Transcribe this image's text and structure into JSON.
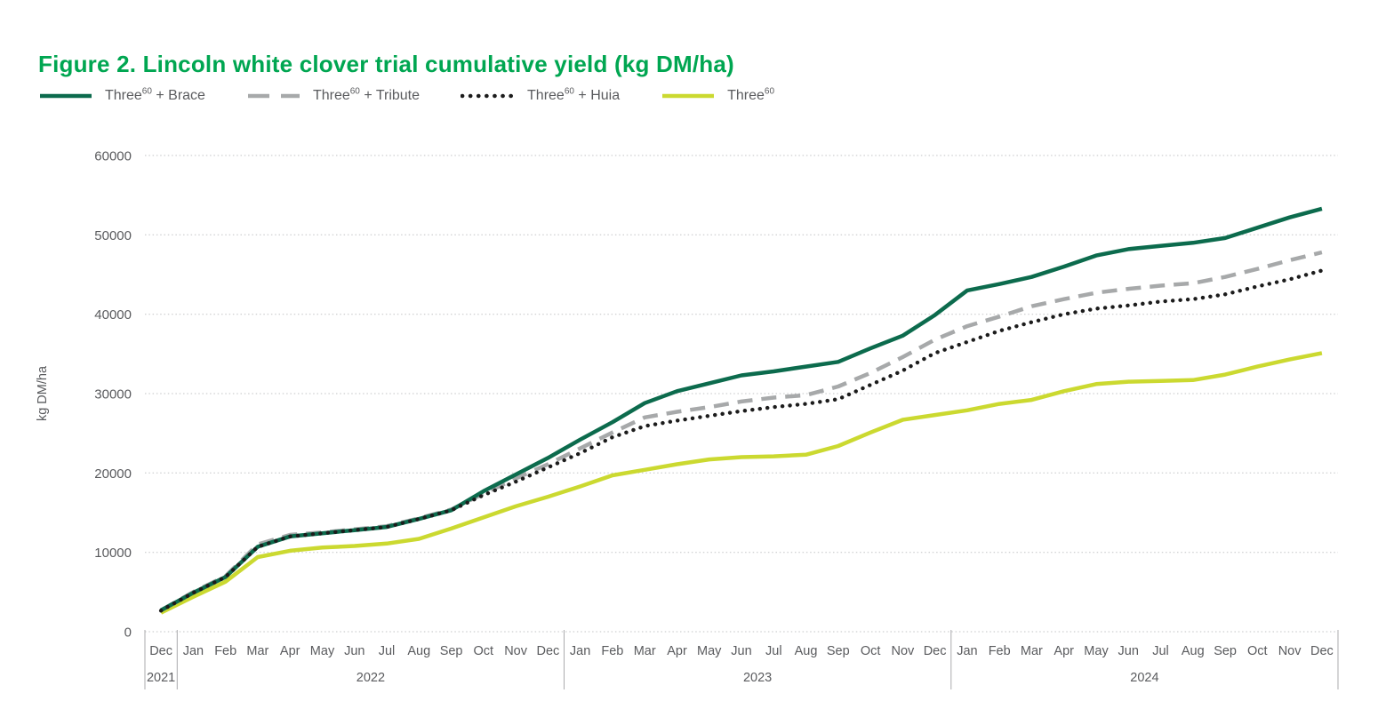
{
  "title": "Figure 2. Lincoln white clover trial cumulative yield (kg DM/ha)",
  "title_color": "#00a651",
  "y_axis": {
    "label": "kg DM/ha",
    "ticks": [
      0,
      10000,
      20000,
      30000,
      40000,
      50000,
      60000
    ]
  },
  "chart_data": {
    "type": "line",
    "title": "Figure 2. Lincoln white clover trial cumulative yield (kg DM/ha)",
    "xlabel": "",
    "ylabel": "kg DM/ha",
    "ylim": [
      0,
      60000
    ],
    "yticks": [
      0,
      10000,
      20000,
      30000,
      40000,
      50000,
      60000
    ],
    "grid": "horizontal-dotted",
    "legend_position": "top-left",
    "x_groups": [
      {
        "year": "2021",
        "months": [
          "Dec"
        ]
      },
      {
        "year": "2022",
        "months": [
          "Jan",
          "Feb",
          "Mar",
          "Apr",
          "May",
          "Jun",
          "Jul",
          "Aug",
          "Sep",
          "Oct",
          "Nov",
          "Dec"
        ]
      },
      {
        "year": "2023",
        "months": [
          "Jan",
          "Feb",
          "Mar",
          "Apr",
          "May",
          "Jun",
          "Jul",
          "Aug",
          "Sep",
          "Oct",
          "Nov",
          "Dec"
        ]
      },
      {
        "year": "2024",
        "months": [
          "Jan",
          "Feb",
          "Mar",
          "Apr",
          "May",
          "Jun",
          "Jul",
          "Aug",
          "Sep",
          "Oct",
          "Nov",
          "Dec"
        ]
      }
    ],
    "categories": [
      "Dec",
      "Jan",
      "Feb",
      "Mar",
      "Apr",
      "May",
      "Jun",
      "Jul",
      "Aug",
      "Sep",
      "Oct",
      "Nov",
      "Dec",
      "Jan",
      "Feb",
      "Mar",
      "Apr",
      "May",
      "Jun",
      "Jul",
      "Aug",
      "Sep",
      "Oct",
      "Nov",
      "Dec",
      "Jan",
      "Feb",
      "Mar",
      "Apr",
      "May",
      "Jun",
      "Jul",
      "Aug",
      "Sep",
      "Oct",
      "Nov",
      "Dec"
    ],
    "series": [
      {
        "id": "brace",
        "name": "Three60 + Brace",
        "name_parts": {
          "base": "Three",
          "sup": "60",
          "suffix": " + Brace"
        },
        "color": "#0c6b4d",
        "line_style": "solid",
        "values": [
          2700,
          4900,
          6900,
          10700,
          12000,
          12400,
          12800,
          13200,
          14200,
          15300,
          17700,
          19800,
          21900,
          24200,
          26400,
          28800,
          30300,
          31300,
          32300,
          32800,
          33400,
          34000,
          35700,
          37300,
          39900,
          43000,
          43800,
          44700,
          46000,
          47400,
          48200,
          48600,
          49000,
          49600,
          50900,
          52200,
          53300
        ]
      },
      {
        "id": "tribute",
        "name": "Three60 + Tribute",
        "name_parts": {
          "base": "Three",
          "sup": "60",
          "suffix": " + Tribute"
        },
        "color": "#a7a9aa",
        "line_style": "dashed",
        "values": [
          2700,
          5000,
          7000,
          11000,
          12200,
          12500,
          12900,
          13300,
          14300,
          15400,
          17400,
          19300,
          21100,
          23100,
          25100,
          27000,
          27700,
          28300,
          29000,
          29500,
          29800,
          30900,
          32600,
          34600,
          36800,
          38500,
          39700,
          41000,
          41900,
          42700,
          43200,
          43600,
          43900,
          44700,
          45700,
          46800,
          47800
        ]
      },
      {
        "id": "huia",
        "name": "Three60 + Huia",
        "name_parts": {
          "base": "Three",
          "sup": "60",
          "suffix": " + Huia"
        },
        "color": "#1c1c1c",
        "line_style": "dotted",
        "values": [
          2650,
          4900,
          6900,
          10700,
          12000,
          12400,
          12800,
          13200,
          14200,
          15300,
          17200,
          18900,
          20700,
          22500,
          24500,
          25900,
          26600,
          27200,
          27800,
          28300,
          28700,
          29300,
          31100,
          32900,
          35100,
          36500,
          37900,
          39000,
          40000,
          40700,
          41100,
          41600,
          41900,
          42500,
          43500,
          44400,
          45500
        ]
      },
      {
        "id": "three60",
        "name": "Three60",
        "name_parts": {
          "base": "Three",
          "sup": "60",
          "suffix": ""
        },
        "color": "#cbd930",
        "line_style": "solid",
        "values": [
          2400,
          4400,
          6300,
          9400,
          10200,
          10600,
          10800,
          11100,
          11700,
          13000,
          14400,
          15800,
          17000,
          18300,
          19700,
          20400,
          21100,
          21700,
          22000,
          22100,
          22300,
          23400,
          25100,
          26700,
          27300,
          27900,
          28700,
          29200,
          30300,
          31200,
          31500,
          31600,
          31700,
          32400,
          33400,
          34300,
          35100
        ]
      }
    ]
  }
}
